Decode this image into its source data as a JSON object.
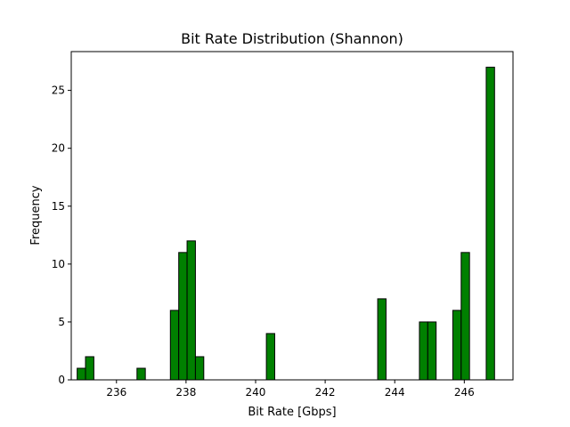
{
  "chart_data": {
    "type": "bar",
    "title": "Bit Rate Distribution (Shannon)",
    "xlabel": "Bit Rate [Gbps]",
    "ylabel": "Frequency",
    "xlim": [
      234.7,
      247.4
    ],
    "ylim": [
      0,
      28.35
    ],
    "xticks": [
      236,
      238,
      240,
      242,
      244,
      246
    ],
    "yticks": [
      0,
      5,
      10,
      15,
      20,
      25
    ],
    "bar_color": "#008000",
    "edge_color": "#000000",
    "bins": [
      {
        "x0": 234.87,
        "x1": 235.11,
        "count": 1
      },
      {
        "x0": 235.11,
        "x1": 235.35,
        "count": 2
      },
      {
        "x0": 236.59,
        "x1": 236.83,
        "count": 1
      },
      {
        "x0": 237.55,
        "x1": 237.79,
        "count": 6
      },
      {
        "x0": 237.79,
        "x1": 238.03,
        "count": 11
      },
      {
        "x0": 238.03,
        "x1": 238.27,
        "count": 12
      },
      {
        "x0": 238.27,
        "x1": 238.51,
        "count": 2
      },
      {
        "x0": 240.31,
        "x1": 240.55,
        "count": 4
      },
      {
        "x0": 243.51,
        "x1": 243.75,
        "count": 7
      },
      {
        "x0": 244.71,
        "x1": 244.95,
        "count": 5
      },
      {
        "x0": 244.95,
        "x1": 245.19,
        "count": 5
      },
      {
        "x0": 245.67,
        "x1": 245.91,
        "count": 6
      },
      {
        "x0": 245.91,
        "x1": 246.15,
        "count": 11
      },
      {
        "x0": 246.63,
        "x1": 246.87,
        "count": 27
      }
    ],
    "grid": false,
    "legend": "none"
  }
}
